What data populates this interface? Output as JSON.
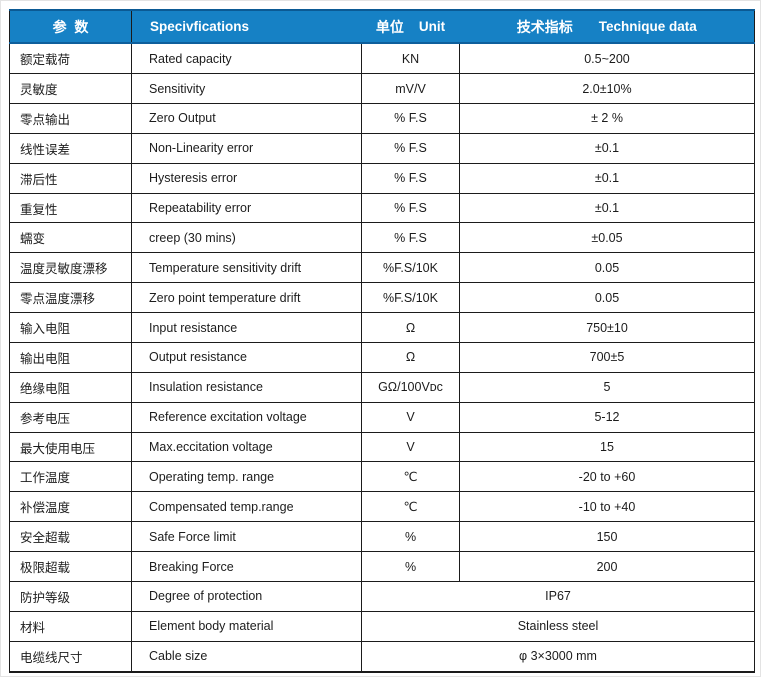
{
  "header": {
    "param_cn": "参  数",
    "spec_en": "Specivfications",
    "unit_cn": "单位",
    "unit_en": "Unit",
    "tech_cn": "技术指标",
    "tech_en": "Technique data"
  },
  "colors": {
    "header_bg": "#1681c5",
    "header_border": "#0e5f9c",
    "grid": "#1b1b1b",
    "header_text": "#ffffff",
    "body_text": "#1c1c1c"
  },
  "rows": [
    {
      "cn": "额定载荷",
      "en": "Rated capacity",
      "unit": "KN",
      "value": "0.5~200"
    },
    {
      "cn": "灵敏度",
      "en": "Sensitivity",
      "unit": "mV/V",
      "value": "2.0±10%"
    },
    {
      "cn": "零点输出",
      "en": "Zero Output",
      "unit": "% F.S",
      "value": "± 2 %"
    },
    {
      "cn": "线性误差",
      "en": "Non-Linearity error",
      "unit": "% F.S",
      "value": "±0.1"
    },
    {
      "cn": "滞后性",
      "en": "Hysteresis error",
      "unit": "% F.S",
      "value": "±0.1"
    },
    {
      "cn": "重复性",
      "en": "Repeatability error",
      "unit": "% F.S",
      "value": "±0.1"
    },
    {
      "cn": "蠕变",
      "en": "creep (30 mins)",
      "unit": "% F.S",
      "value": "±0.05"
    },
    {
      "cn": "温度灵敏度漂移",
      "en": "Temperature sensitivity drift",
      "unit": "%F.S/10K",
      "value": "0.05"
    },
    {
      "cn": "零点温度漂移",
      "en": "Zero point temperature drift",
      "unit": "%F.S/10K",
      "value": "0.05"
    },
    {
      "cn": "输入电阻",
      "en": "Input resistance",
      "unit": "Ω",
      "value": "750±10"
    },
    {
      "cn": "输出电阻",
      "en": "Output resistance",
      "unit": "Ω",
      "value": "700±5"
    },
    {
      "cn": "绝缘电阻",
      "en": "Insulation resistance",
      "unit": "GΩ/100Vᴅᴄ",
      "value": "5"
    },
    {
      "cn": "参考电压",
      "en": "Reference excitation voltage",
      "unit": "V",
      "value": "5-12"
    },
    {
      "cn": "最大使用电压",
      "en": "Max.eccitation voltage",
      "unit": "V",
      "value": "15"
    },
    {
      "cn": "工作温度",
      "en": "Operating temp. range",
      "unit": "℃",
      "value": "-20 to +60"
    },
    {
      "cn": "补偿温度",
      "en": "Compensated temp.range",
      "unit": "℃",
      "value": "-10 to +40"
    },
    {
      "cn": "安全超载",
      "en": "Safe Force limit",
      "unit": "%",
      "value": "150"
    },
    {
      "cn": "极限超载",
      "en": "Breaking Force",
      "unit": "%",
      "value": "200"
    },
    {
      "cn": "防护等级",
      "en": "Degree of protection",
      "merged": true,
      "value": "IP67"
    },
    {
      "cn": "材料",
      "en": "Element body material",
      "merged": true,
      "value": "Stainless steel"
    },
    {
      "cn": "电缆线尺寸",
      "en": "Cable size",
      "merged": true,
      "value": "φ 3×3000 mm"
    }
  ]
}
